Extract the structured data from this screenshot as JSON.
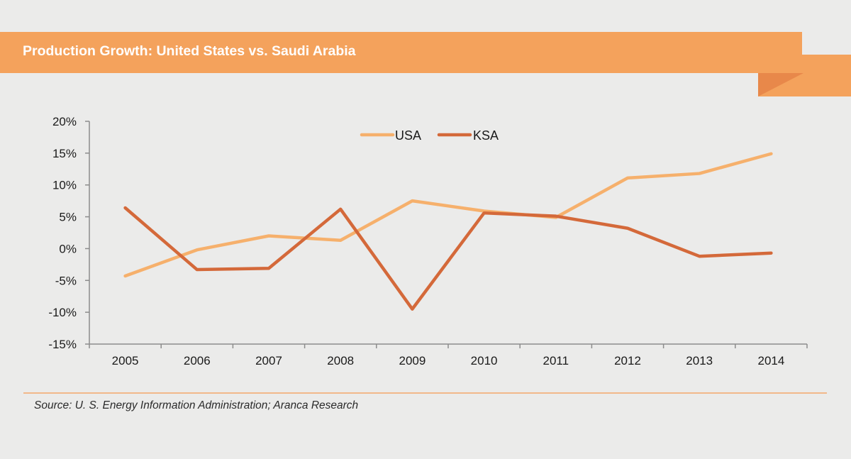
{
  "header": {
    "title": "Production Growth: United States vs. Saudi Arabia"
  },
  "colors": {
    "banner": "#f4a25c",
    "banner_fold": "#e8884a",
    "usa": "#f6b06c",
    "ksa": "#d4693a",
    "axis": "#8c8c8c"
  },
  "chart_data": {
    "type": "line",
    "title": "Production Growth: United States vs. Saudi Arabia",
    "xlabel": "",
    "ylabel": "",
    "categories": [
      "2005",
      "2006",
      "2007",
      "2008",
      "2009",
      "2010",
      "2011",
      "2012",
      "2013",
      "2014"
    ],
    "series": [
      {
        "name": "USA",
        "values": [
          -4.3,
          -0.2,
          2.0,
          1.3,
          7.5,
          5.9,
          4.9,
          11.1,
          11.8,
          14.9
        ]
      },
      {
        "name": "KSA",
        "values": [
          6.4,
          -3.3,
          -3.1,
          6.2,
          -9.5,
          5.6,
          5.1,
          3.2,
          -1.2,
          -0.7
        ]
      }
    ],
    "ylim": [
      -15,
      20
    ],
    "yticks": [
      20,
      15,
      10,
      5,
      0,
      -5,
      -10,
      -15
    ],
    "ytick_labels": [
      "20%",
      "15%",
      "10%",
      "5%",
      "0%",
      "-5%",
      "-10%",
      "-15%"
    ],
    "grid": false,
    "legend": "top-center",
    "unit": "%"
  },
  "footer": {
    "source": "Source: U. S. Energy Information Administration; Aranca Research"
  }
}
